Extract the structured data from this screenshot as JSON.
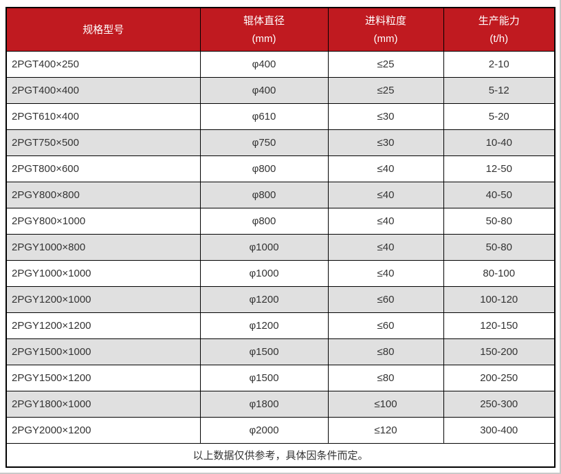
{
  "table": {
    "columns": [
      {
        "label": "规格型号",
        "unit": ""
      },
      {
        "label": "辊体直径",
        "unit": "(mm)"
      },
      {
        "label": "进料粒度",
        "unit": "(mm)"
      },
      {
        "label": "生产能力",
        "unit": "(t/h)"
      }
    ],
    "rows": [
      [
        "2PGT400×250",
        "φ400",
        "≤25",
        "2-10"
      ],
      [
        "2PGT400×400",
        "φ400",
        "≤25",
        "5-12"
      ],
      [
        "2PGT610×400",
        "φ610",
        "≤30",
        "5-20"
      ],
      [
        "2PGT750×500",
        "φ750",
        "≤30",
        "10-40"
      ],
      [
        "2PGT800×600",
        "φ800",
        "≤40",
        "12-50"
      ],
      [
        "2PGY800×800",
        "φ800",
        "≤40",
        "40-50"
      ],
      [
        "2PGY800×1000",
        "φ800",
        "≤40",
        "50-80"
      ],
      [
        "2PGY1000×800",
        "φ1000",
        "≤40",
        "50-80"
      ],
      [
        "2PGY1000×1000",
        "φ1000",
        "≤40",
        "80-100"
      ],
      [
        "2PGY1200×1000",
        "φ1200",
        "≤60",
        "100-120"
      ],
      [
        "2PGY1200×1200",
        "φ1200",
        "≤60",
        "120-150"
      ],
      [
        "2PGY1500×1000",
        "φ1500",
        "≤80",
        "150-200"
      ],
      [
        "2PGY1500×1200",
        "φ1500",
        "≤80",
        "200-250"
      ],
      [
        "2PGY1800×1000",
        "φ1800",
        "≤100",
        "250-300"
      ],
      [
        "2PGY2000×1200",
        "φ2000",
        "≤120",
        "300-400"
      ]
    ],
    "footnote": "以上数据仅供参考，具体因条件而定。"
  },
  "colors": {
    "header_bg": "#c01a20",
    "header_text": "#ffffff",
    "border": "#000000",
    "body_text": "#333333",
    "row_bg": "#ffffff",
    "row_alt_bg": "#e0e0e0",
    "page_edge": "#c9c9c9"
  }
}
